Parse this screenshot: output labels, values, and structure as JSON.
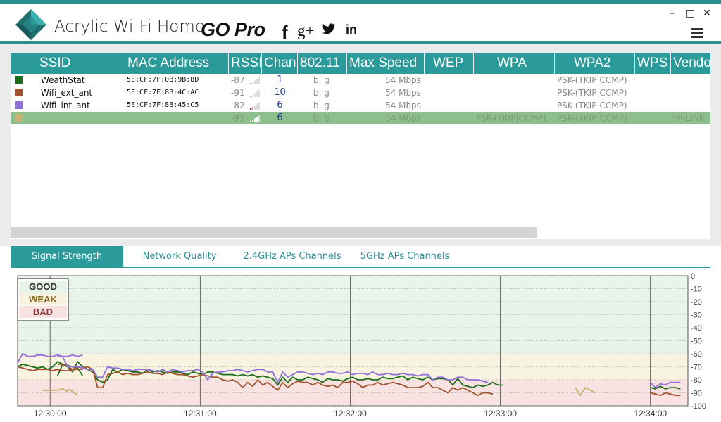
{
  "app": {
    "title": "Acrylic Wi-Fi Home",
    "upgrade_label": "GO Pro"
  },
  "social": {
    "facebook": "f",
    "google": "g+",
    "linkedin": "in",
    "twitter_icon": "twitter-icon"
  },
  "window_controls": {
    "minimize": "–",
    "maximize": "□",
    "close": "✕"
  },
  "table": {
    "columns": [
      "SSID",
      "MAC Address",
      "RSSI",
      "Chan",
      "802.11",
      "Max Speed",
      "WEP",
      "WPA",
      "WPA2",
      "WPS",
      "Vendor"
    ],
    "rows": [
      {
        "color": "#1a6e1a",
        "ssid": "WeathStat",
        "mac": "5E:CF:7F:0B:9B:8D",
        "rssi": "-87",
        "chan": "1",
        "std": "b, g",
        "speed": "54 Mbps",
        "wep": "",
        "wpa": "",
        "wpa2": "PSK-(TKIP|CCMP)",
        "wps": "",
        "vendor": ""
      },
      {
        "color": "#a0522d",
        "ssid": "Wifi_ext_ant",
        "mac": "5E:CF:7F:8B:4C:AC",
        "rssi": "-91",
        "chan": "10",
        "std": "b, g",
        "speed": "54 Mbps",
        "wep": "",
        "wpa": "",
        "wpa2": "PSK-(TKIP|CCMP)",
        "wps": "",
        "vendor": ""
      },
      {
        "color": "#9370db",
        "ssid": "Wifi_int_ant",
        "mac": "5E:CF:7F:8B:45:C5",
        "rssi": "-82",
        "chan": "6",
        "std": "b, g",
        "speed": "54 Mbps",
        "wep": "",
        "wpa": "",
        "wpa2": "PSK-(TKIP|CCMP)",
        "wps": "",
        "vendor": ""
      },
      {
        "color": "#c8b070",
        "ssid": "",
        "mac": "",
        "rssi": "-91",
        "chan": "6",
        "std": "b, g",
        "speed": "54 Mbps",
        "wep": "",
        "wpa": "PSK-(TKIP|CCMP)",
        "wpa2": "PSK-(TKIP|CCMP)",
        "wps": "",
        "vendor": "TP-LINK"
      }
    ]
  },
  "tabs": [
    "Signal Strength",
    "Network Quality",
    "2.4GHz APs Channels",
    "5GHz APs Channels"
  ],
  "legend": {
    "good": "GOOD",
    "weak": "WEAK",
    "bad": "BAD"
  },
  "chart_data": {
    "type": "line",
    "title": "",
    "xlabel": "",
    "ylabel": "",
    "ylim": [
      -100,
      0
    ],
    "yticks": [
      0,
      -10,
      -20,
      -30,
      -40,
      -50,
      -60,
      -70,
      -80,
      -90,
      -100
    ],
    "xticks": [
      "12:30:00",
      "12:31:00",
      "12:32:00",
      "12:33:00",
      "12:34:00"
    ],
    "zones": [
      {
        "label": "GOOD",
        "from": 0,
        "to": -60,
        "color": "#e8f4ea"
      },
      {
        "label": "WEAK",
        "from": -60,
        "to": -80,
        "color": "#f8f2e0"
      },
      {
        "label": "BAD",
        "from": -80,
        "to": -100,
        "color": "#f8e2e2"
      }
    ],
    "x_start": "12:29:47",
    "x_end": "12:34:15",
    "series": [
      {
        "color": "#1a6e1a",
        "segments": [
          {
            "t_start": "12:29:47",
            "step_s": 2,
            "values": [
              -70,
              -68,
              -69,
              -70,
              -71,
              -70,
              -72,
              -70,
              -66,
              -68,
              -69,
              -70,
              -71,
              -77
            ]
          },
          {
            "t_start": "12:30:03",
            "step_s": 2,
            "values": [
              -77,
              -68,
              -70,
              -74,
              -66,
              -70,
              -72,
              -74,
              -80,
              -82,
              -80,
              -72,
              -74,
              -72,
              -73,
              -74,
              -74,
              -75,
              -72,
              -74,
              -73,
              -74,
              -75,
              -74,
              -74,
              -75,
              -76,
              -74,
              -75,
              -76,
              -74,
              -74,
              -75,
              -76,
              -76,
              -76,
              -77,
              -76,
              -77,
              -76,
              -78,
              -77,
              -78,
              -79,
              -84,
              -78,
              -82,
              -78,
              -80,
              -80,
              -78,
              -79,
              -80,
              -82,
              -79,
              -80,
              -80,
              -81,
              -79,
              -78,
              -80,
              -80,
              -79,
              -80,
              -80,
              -78,
              -79,
              -79,
              -78,
              -77,
              -80,
              -78,
              -79,
              -80,
              -78,
              -80,
              -79,
              -79,
              -80,
              -84,
              -79,
              -84,
              -85,
              -86,
              -84,
              -85,
              -84,
              -82,
              -84,
              -84
            ]
          },
          {
            "t_start": "12:34:00",
            "step_s": 2,
            "values": [
              -86,
              -87,
              -85,
              -87,
              -86,
              -86,
              -87
            ]
          }
        ]
      },
      {
        "color": "#a0522d",
        "segments": [
          {
            "t_start": "12:29:47",
            "step_s": 2,
            "values": [
              -70,
              -71,
              -72,
              -73,
              -72,
              -72,
              -72,
              -73,
              -72,
              -73,
              -73,
              -72,
              -72,
              -72
            ]
          },
          {
            "t_start": "12:30:03",
            "step_s": 2,
            "values": [
              -68,
              -68,
              -70,
              -72,
              -70,
              -71,
              -70,
              -72,
              -86,
              -86,
              -76,
              -75,
              -74,
              -76,
              -75,
              -76,
              -76,
              -75,
              -74,
              -75,
              -75,
              -76,
              -74,
              -75,
              -76,
              -76,
              -77,
              -78,
              -77,
              -76,
              -77,
              -78,
              -78,
              -80,
              -81,
              -80,
              -82,
              -86,
              -82,
              -85,
              -80,
              -84,
              -82,
              -85,
              -88,
              -82,
              -86,
              -83,
              -81,
              -82,
              -82,
              -84,
              -82,
              -84,
              -85,
              -84,
              -86,
              -82,
              -82,
              -81,
              -83,
              -86,
              -84,
              -84,
              -82,
              -84,
              -83,
              -82,
              -83,
              -84,
              -86,
              -86,
              -86,
              -85,
              -82,
              -86,
              -86,
              -88,
              -90,
              -86,
              -88,
              -86,
              -88,
              -90,
              -92,
              -90,
              -90,
              -91
            ]
          },
          {
            "t_start": "12:34:00",
            "step_s": 2,
            "values": [
              -90,
              -91,
              -92,
              -90,
              -91,
              -92,
              -92
            ]
          }
        ]
      },
      {
        "color": "#9370db",
        "segments": [
          {
            "t_start": "12:29:47",
            "step_s": 2,
            "values": [
              -67,
              -60,
              -62,
              -62,
              -61,
              -61,
              -62,
              -62,
              -61,
              -62,
              -62,
              -61,
              -62,
              -61
            ]
          },
          {
            "t_start": "12:30:03",
            "step_s": 2,
            "values": [
              -62,
              -62,
              -70,
              -70,
              -70,
              -71,
              -72,
              -72,
              -78,
              -78,
              -70,
              -71,
              -71,
              -72,
              -72,
              -73,
              -72,
              -72,
              -72,
              -73,
              -74,
              -72,
              -74,
              -72,
              -73,
              -74,
              -73,
              -73,
              -72,
              -74,
              -80,
              -75,
              -74,
              -74,
              -73,
              -73,
              -72,
              -73,
              -74,
              -73,
              -72,
              -72,
              -74,
              -74,
              -82,
              -74,
              -78,
              -76,
              -74,
              -74,
              -75,
              -76,
              -75,
              -76,
              -74,
              -74,
              -75,
              -75,
              -74,
              -76,
              -75,
              -75,
              -76,
              -74,
              -76,
              -76,
              -75,
              -76,
              -76,
              -75,
              -76,
              -76,
              -77,
              -76,
              -76,
              -80,
              -78,
              -78,
              -80,
              -80,
              -78,
              -78,
              -80,
              -80,
              -80,
              -81,
              -82
            ]
          },
          {
            "t_start": "12:34:00",
            "step_s": 2,
            "values": [
              -82,
              -86,
              -83,
              -84,
              -82,
              -82,
              -82
            ]
          }
        ]
      },
      {
        "color": "#c8b070",
        "segments": [
          {
            "t_start": "12:29:49",
            "step_s": 2,
            "values": [
              -92
            ]
          },
          {
            "t_start": "12:29:57",
            "step_s": 2,
            "values": [
              -88,
              -88,
              -88,
              -88,
              -87,
              -89
            ]
          },
          {
            "t_start": "12:30:07",
            "step_s": 2,
            "values": [
              -87,
              -89,
              -92
            ]
          },
          {
            "t_start": "12:33:30",
            "step_s": 2,
            "values": [
              -86,
              -92,
              -86,
              -88,
              -90
            ]
          }
        ]
      }
    ]
  }
}
